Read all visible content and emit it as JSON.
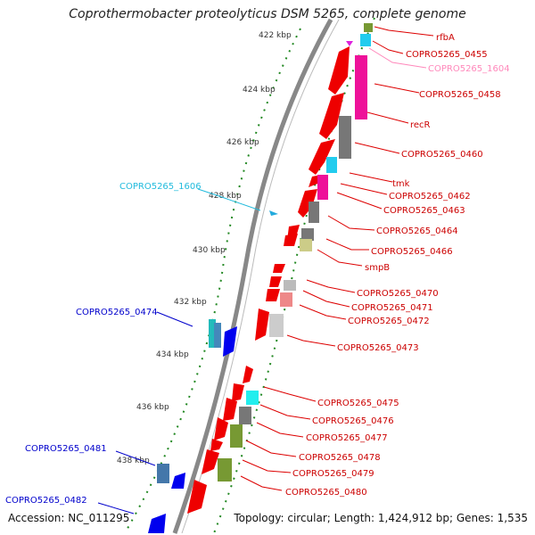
{
  "title": "Coprothermobacter proteolyticus DSM 5265, complete genome",
  "footer": {
    "accession": "Accession: NC_011295",
    "topology": "Topology: circular; Length: 1,424,912 bp; Genes: 1,535"
  },
  "ticks": [
    "422 kbp",
    "424 kbp",
    "426 kbp",
    "428 kbp",
    "430 kbp",
    "432 kbp",
    "434 kbp",
    "436 kbp",
    "438 kbp"
  ],
  "genes_right": [
    {
      "label": "rfbA",
      "color": "#cc0000"
    },
    {
      "label": "COPRO5265_0455",
      "color": "#cc0000"
    },
    {
      "label": "COPRO5265_1604",
      "color": "#ff88bb"
    },
    {
      "label": "COPRO5265_0458",
      "color": "#cc0000"
    },
    {
      "label": "recR",
      "color": "#cc0000"
    },
    {
      "label": "COPRO5265_0460",
      "color": "#cc0000"
    },
    {
      "label": "tmk",
      "color": "#cc0000"
    },
    {
      "label": "COPRO5265_0462",
      "color": "#cc0000"
    },
    {
      "label": "COPRO5265_0463",
      "color": "#cc0000"
    },
    {
      "label": "COPRO5265_0464",
      "color": "#cc0000"
    },
    {
      "label": "COPRO5265_0466",
      "color": "#cc0000"
    },
    {
      "label": "smpB",
      "color": "#cc0000"
    },
    {
      "label": "COPRO5265_0470",
      "color": "#cc0000"
    },
    {
      "label": "COPRO5265_0471",
      "color": "#cc0000"
    },
    {
      "label": "COPRO5265_0472",
      "color": "#cc0000"
    },
    {
      "label": "COPRO5265_0473",
      "color": "#cc0000"
    },
    {
      "label": "COPRO5265_0475",
      "color": "#cc0000"
    },
    {
      "label": "COPRO5265_0476",
      "color": "#cc0000"
    },
    {
      "label": "COPRO5265_0477",
      "color": "#cc0000"
    },
    {
      "label": "COPRO5265_0478",
      "color": "#cc0000"
    },
    {
      "label": "COPRO5265_0479",
      "color": "#cc0000"
    },
    {
      "label": "COPRO5265_0480",
      "color": "#cc0000"
    }
  ],
  "genes_left": [
    {
      "label": "COPRO5265_1606",
      "color": "#22bbdd"
    },
    {
      "label": "COPRO5265_0474",
      "color": "#0000cc"
    },
    {
      "label": "COPRO5265_0481",
      "color": "#0000cc"
    },
    {
      "label": "COPRO5265_0482",
      "color": "#0000cc"
    }
  ],
  "colors": {
    "backbone": "#888888",
    "forward_cds": "#ee0000",
    "reverse_cds": "#0000ee",
    "tick_dots": "#228822",
    "feature_magenta": "#ee1199",
    "feature_gray": "#777777",
    "feature_olive": "#779933",
    "feature_cyan": "#22ccee"
  }
}
